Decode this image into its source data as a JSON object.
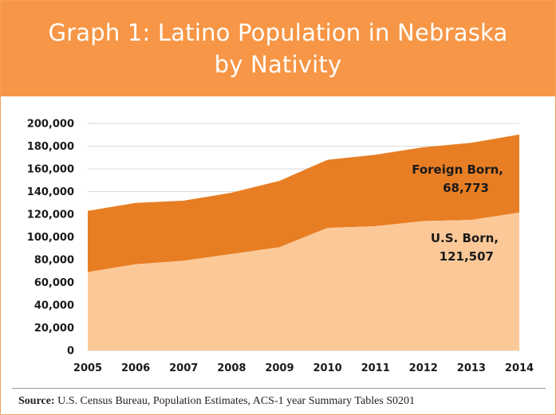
{
  "header": {
    "title": "Graph 1: Latino Population in Nebraska by Nativity"
  },
  "colors": {
    "title_band": "#f79646",
    "foreign_born": "#e87e24",
    "us_born": "#fcc898",
    "gridline": "#d9d9d9"
  },
  "chart_data": {
    "type": "area",
    "stacked": true,
    "title": "Graph 1: Latino Population in Nebraska by Nativity",
    "xlabel": "",
    "ylabel": "",
    "x": [
      "2005",
      "2006",
      "2007",
      "2008",
      "2009",
      "2010",
      "2011",
      "2012",
      "2013",
      "2014"
    ],
    "ylim": [
      0,
      200000
    ],
    "yticks": [
      "0",
      "20,000",
      "40,000",
      "60,000",
      "80,000",
      "100,000",
      "120,000",
      "140,000",
      "160,000",
      "180,000",
      "200,000"
    ],
    "grid": true,
    "series": [
      {
        "name": "U.S. Born",
        "values": [
          69000,
          76000,
          79000,
          85000,
          91000,
          108000,
          109500,
          114000,
          115000,
          121507
        ]
      },
      {
        "name": "Foreign Born",
        "values": [
          54000,
          54000,
          53000,
          54000,
          58500,
          60000,
          63000,
          65000,
          68000,
          68773
        ]
      }
    ],
    "annotations": [
      {
        "series": "Foreign Born",
        "line1": "Foreign Born,",
        "line2": "68,773"
      },
      {
        "series": "U.S. Born",
        "line1": "U.S. Born,",
        "line2": "121,507"
      }
    ]
  },
  "source": {
    "label": "Source:",
    "text": " U.S. Census Bureau, Population Estimates, ACS-1 year Summary Tables S0201"
  }
}
